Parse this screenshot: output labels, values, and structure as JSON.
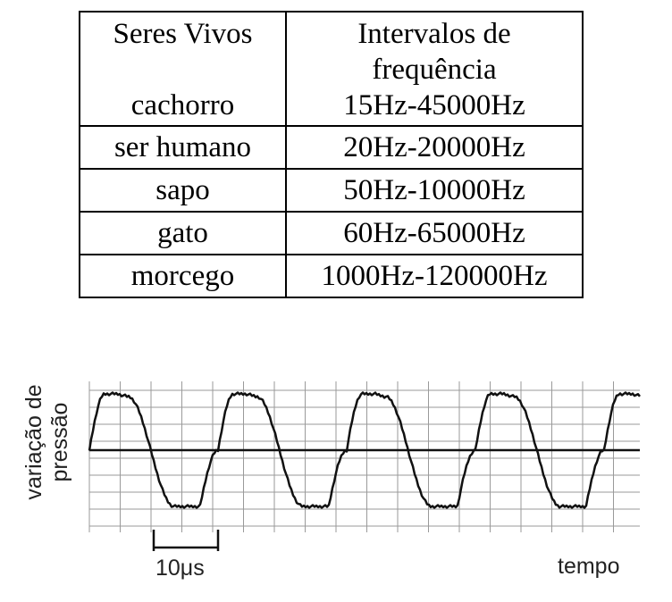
{
  "table": {
    "header": {
      "col1": "Seres Vivos",
      "col2_line1": "Intervalos de",
      "col2_line2": "frequência"
    },
    "rows": [
      {
        "animal": "cachorro",
        "range": "15Hz-45000Hz"
      },
      {
        "animal": "ser humano",
        "range": "20Hz-20000Hz"
      },
      {
        "animal": "sapo",
        "range": "50Hz-10000Hz"
      },
      {
        "animal": "gato",
        "range": "60Hz-65000Hz"
      },
      {
        "animal": "morcego",
        "range": "1000Hz-120000Hz"
      }
    ]
  },
  "waveform": {
    "y_label_line1": "variação de",
    "y_label_line2": "pressão",
    "x_label": "tempo",
    "scale_label": "10μs",
    "line_color": "#111111",
    "grid_color": "#9a9a9a"
  }
}
